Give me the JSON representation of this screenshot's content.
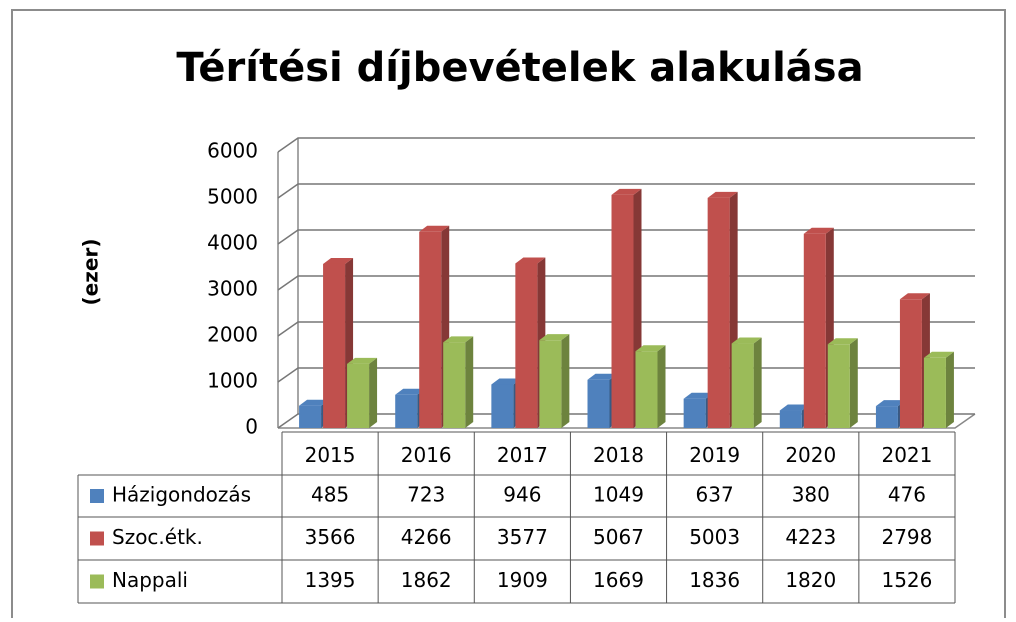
{
  "chart_data": {
    "type": "bar3d",
    "title": "Térítési díjbevételek alakulása",
    "ylabel": "(ezer)",
    "categories": [
      "2015",
      "2016",
      "2017",
      "2018",
      "2019",
      "2020",
      "2021"
    ],
    "series": [
      {
        "name": "Házigondozás",
        "color": "#4f81bd",
        "values": [
          485,
          723,
          946,
          1049,
          637,
          380,
          476
        ]
      },
      {
        "name": "Szoc.étk.",
        "color": "#c0504d",
        "values": [
          3566,
          4266,
          3577,
          5067,
          5003,
          4223,
          2798
        ]
      },
      {
        "name": "Nappali",
        "color": "#9bbb59",
        "values": [
          1395,
          1862,
          1909,
          1669,
          1836,
          1820,
          1526
        ]
      }
    ],
    "ylim": [
      0,
      6000
    ],
    "yticks": [
      0,
      1000,
      2000,
      3000,
      4000,
      5000,
      6000
    ],
    "grid": true
  }
}
